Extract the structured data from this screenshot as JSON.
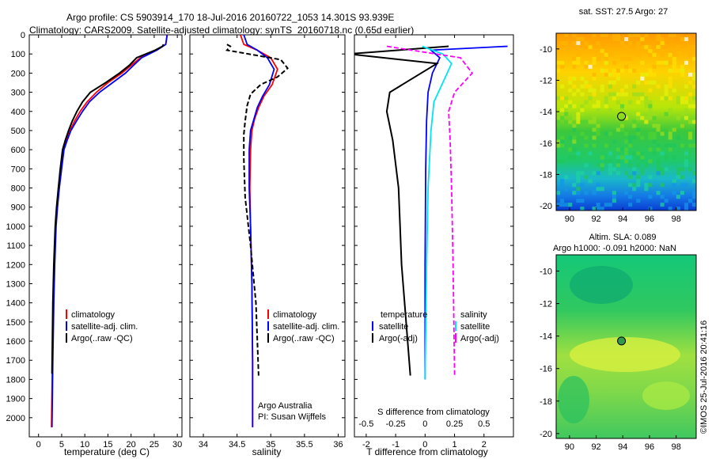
{
  "header": {
    "line1": "Argo profile: CS 5903914_170 18-Jul-2016 20160722_1053 14.301S 93.939E",
    "line2": "Climatology: CARS2009. Satellite-adjusted climatology: synTS_20160718.nc (0.65d earlier)"
  },
  "footer": {
    "side_text": "©IMOS 25-Jul-2016 20:41:16",
    "credit_line1": "Argo Australia",
    "credit_line2": "PI: Susan Wijffels"
  },
  "colors": {
    "climatology": "#ff0000",
    "satellite": "#0000ff",
    "argo": "#000000",
    "temp_diff": "#ff00ff",
    "sal_diff": "#00e5ee"
  },
  "chart_data": [
    {
      "type": "line",
      "panel": "temperature",
      "xlabel": "temperature (deg C)",
      "ylim": [
        2100,
        0
      ],
      "xlim": [
        -2,
        31
      ],
      "xticks": [
        0,
        5,
        10,
        15,
        20,
        25,
        30
      ],
      "yticks": [
        0,
        100,
        200,
        300,
        400,
        500,
        600,
        700,
        800,
        900,
        1000,
        1100,
        1200,
        1300,
        1400,
        1500,
        1600,
        1700,
        1800,
        1900,
        2000
      ],
      "legend": [
        "climatology",
        "satellite-adj. clim.",
        "Argo(..raw -QC)"
      ],
      "series": [
        {
          "name": "climatology",
          "color": "#ff0000",
          "x": [
            27.8,
            27.5,
            25.5,
            22,
            20,
            18,
            15,
            12.5,
            10.5,
            9,
            7.8,
            6.8,
            6,
            5.3,
            4.8,
            4.3,
            4,
            3.7,
            3.4,
            3.2,
            3,
            2.8
          ],
          "y": [
            0,
            50,
            80,
            120,
            160,
            200,
            250,
            300,
            350,
            400,
            450,
            500,
            550,
            600,
            700,
            800,
            900,
            1000,
            1200,
            1400,
            1700,
            2050
          ]
        },
        {
          "name": "satellite-adj. clim.",
          "color": "#0000ff",
          "x": [
            27.8,
            27.5,
            25.6,
            22.3,
            20.5,
            18.8,
            16,
            13.2,
            11,
            9.5,
            8.2,
            7,
            6.2,
            5.5,
            5,
            4.5,
            4.1,
            3.8,
            3.5,
            3.3,
            3.1,
            2.9
          ],
          "y": [
            0,
            50,
            80,
            120,
            160,
            200,
            250,
            300,
            350,
            400,
            450,
            500,
            550,
            600,
            700,
            800,
            900,
            1000,
            1200,
            1400,
            1700,
            2050
          ]
        },
        {
          "name": "Argo(..raw -QC)",
          "color": "#000000",
          "x": [
            27,
            26.8,
            25.2,
            21.2,
            19.6,
            17.5,
            14.5,
            11.2,
            9.5,
            8.3,
            7.3,
            6.5,
            5.8,
            5.2,
            4.7,
            4.3,
            3.9,
            3.6,
            3.3,
            3.1,
            2.9
          ],
          "y": [
            50,
            60,
            80,
            120,
            160,
            200,
            250,
            300,
            350,
            400,
            450,
            500,
            550,
            600,
            700,
            800,
            900,
            1000,
            1200,
            1400,
            1770
          ]
        }
      ]
    },
    {
      "type": "line",
      "panel": "salinity",
      "xlabel": "salinity",
      "ylim": [
        2100,
        0
      ],
      "xlim": [
        33.8,
        36.1
      ],
      "xticks": [
        34,
        34.5,
        35,
        35.5,
        36
      ],
      "xtick_labels": [
        "34",
        "34.5",
        "35",
        "35.5",
        "36"
      ],
      "legend": [
        "climatology",
        "satellite-adj. clim.",
        "Argo(..raw -QC)"
      ],
      "series": [
        {
          "name": "climatology",
          "color": "#ff0000",
          "x": [
            34.55,
            34.6,
            34.8,
            35.0,
            35.1,
            35.02,
            34.9,
            34.82,
            34.76,
            34.72,
            34.7,
            34.69,
            34.7,
            34.72,
            34.73,
            34.73
          ],
          "y": [
            0,
            50,
            80,
            120,
            180,
            260,
            320,
            380,
            440,
            500,
            600,
            800,
            1000,
            1300,
            1700,
            2050
          ]
        },
        {
          "name": "satellite-adj. clim.",
          "color": "#0000ff",
          "x": [
            34.6,
            34.65,
            34.8,
            34.95,
            35.05,
            34.98,
            34.88,
            34.8,
            34.75,
            34.7,
            34.68,
            34.68,
            34.7,
            34.72,
            34.73,
            34.73
          ],
          "y": [
            0,
            50,
            80,
            120,
            180,
            260,
            320,
            380,
            440,
            500,
            600,
            800,
            1000,
            1300,
            1700,
            2050
          ]
        },
        {
          "name": "Argo(..raw -QC)",
          "color": "#000000",
          "x": [
            34.35,
            34.4,
            34.35,
            35.15,
            35.25,
            35.1,
            34.85,
            34.7,
            34.65,
            34.62,
            34.6,
            34.6,
            34.62,
            34.7,
            34.78,
            34.82
          ],
          "y": [
            50,
            60,
            80,
            130,
            175,
            220,
            260,
            310,
            370,
            450,
            520,
            650,
            850,
            1100,
            1400,
            1780
          ]
        }
      ]
    },
    {
      "type": "line",
      "panel": "differences",
      "xlabel": "T difference from climatology",
      "xlabel_top": "S difference from climatology",
      "ylim": [
        2100,
        0
      ],
      "xlim": [
        -2.4,
        3.0
      ],
      "xticks": [
        -2,
        -1,
        0,
        1,
        2
      ],
      "xtick_labels": [
        "-2",
        "-1",
        "0",
        "1",
        "2"
      ],
      "top_ticks": [
        "-0.5",
        "-0.25",
        "0",
        "0.25",
        "0.5"
      ],
      "legend_temperature": [
        "temperature",
        "satellite",
        "Argo(-adj)"
      ],
      "legend_salinity": [
        "salinity",
        "satellite",
        "Argo(-adj)"
      ],
      "series": [
        {
          "name": "satellite",
          "color": "#0000ff",
          "x": [
            2.8,
            0.2,
            0.5,
            0.25,
            0.1,
            0.05,
            0.02,
            0.0,
            0.0
          ],
          "y": [
            60,
            80,
            120,
            200,
            300,
            450,
            700,
            1200,
            1800
          ]
        },
        {
          "name": "Argo(-adj)",
          "color": "#000000",
          "x": [
            0.8,
            -2.6,
            0.4,
            -1.2,
            -1.3,
            -1.1,
            -0.9,
            -0.8,
            -0.5
          ],
          "y": [
            60,
            100,
            150,
            300,
            400,
            550,
            800,
            1200,
            1780
          ]
        },
        {
          "name": "satellite",
          "color": "#00e5ee",
          "x": [
            -0.1,
            0.6,
            0.9,
            0.6,
            0.3,
            0.2,
            0.1,
            0.05,
            0.0
          ],
          "y": [
            60,
            100,
            150,
            250,
            350,
            500,
            800,
            1200,
            1800
          ]
        },
        {
          "name": "Argo(-adj)",
          "color": "#ff00ff",
          "x": [
            -1.3,
            1.2,
            1.6,
            1.0,
            0.8,
            0.85,
            0.9,
            0.95,
            1.0
          ],
          "y": [
            60,
            120,
            200,
            300,
            400,
            550,
            800,
            1200,
            1780
          ]
        }
      ]
    },
    {
      "type": "heatmap",
      "panel": "sst-map",
      "title": "sat. SST: 27.5 Argo: 27",
      "xlim": [
        89,
        99.5
      ],
      "ylim": [
        -20.3,
        -9
      ],
      "xticks": [
        90,
        92,
        94,
        96,
        98
      ],
      "yticks": [
        -10,
        -12,
        -14,
        -16,
        -18,
        -20
      ],
      "argo_position": [
        93.9,
        -14.3
      ]
    },
    {
      "type": "heatmap",
      "panel": "sla-map",
      "title_line1": "Altim. SLA: 0.089",
      "title_line2": "Argo h1000: -0.091 h2000: NaN",
      "xlim": [
        89,
        99.5
      ],
      "ylim": [
        -20.3,
        -9
      ],
      "xticks": [
        90,
        92,
        94,
        96,
        98
      ],
      "yticks": [
        -10,
        -12,
        -14,
        -16,
        -18,
        -20
      ],
      "argo_position": [
        93.9,
        -14.3
      ]
    }
  ]
}
